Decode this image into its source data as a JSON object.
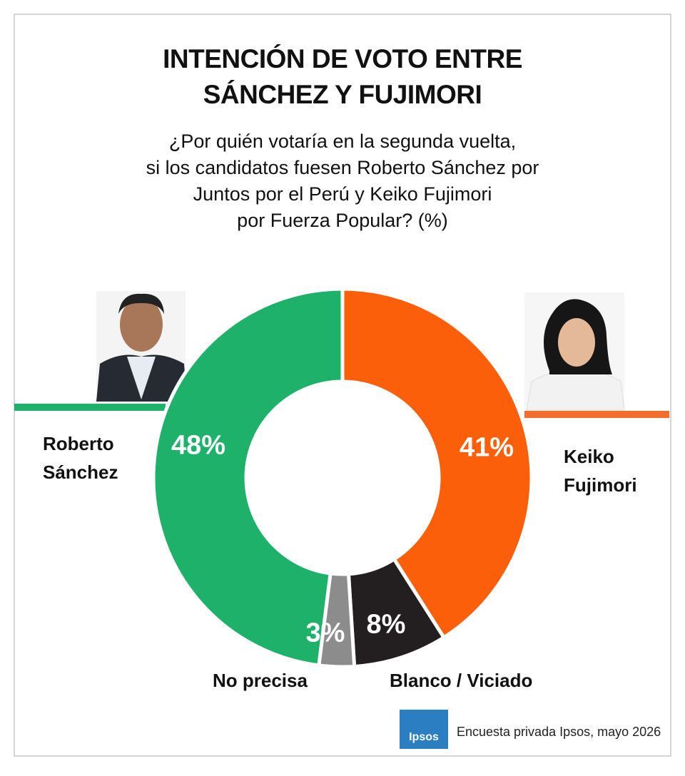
{
  "chart_data": {
    "type": "donut",
    "title": [
      "INTENCIÓN DE VOTO ENTRE",
      "SÁNCHEZ Y FUJIMORI"
    ],
    "subtitle": [
      "¿Por quién votaría en la segunda vuelta,",
      "si los candidatos fuesen Roberto Sánchez por",
      "Juntos por el Perú y Keiko Fujimori",
      "por Fuerza Popular? (%)"
    ],
    "categories": [
      "Keiko Fujimori",
      "Blanco / Viciado",
      "No precisa",
      "Roberto Sánchez"
    ],
    "values": [
      41,
      8,
      3,
      48
    ],
    "value_labels": [
      "41%",
      "8%",
      "3%",
      "48%"
    ],
    "colors": [
      "#fb5f0a",
      "#231f20",
      "#8c8c8c",
      "#1db16a"
    ],
    "logo": "Ipsos",
    "source": "Encuesta privada Ipsos, mayo 2026"
  }
}
